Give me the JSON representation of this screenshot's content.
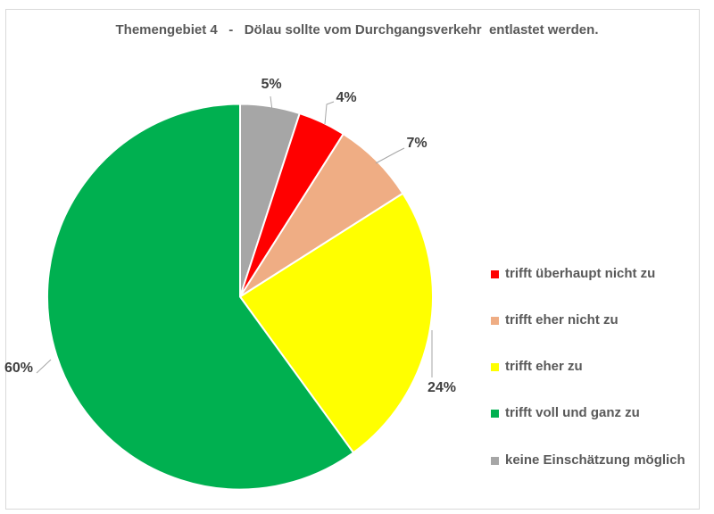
{
  "title": "Themengebiet 4   -   Dölau sollte vom Durchgangsverkehr  entlastet werden.",
  "colors": {
    "title_text": "#595959",
    "percent_label_text": "#3f3f3f",
    "legend_text": "#595959",
    "chart_border": "#d9d9d9",
    "leader_line": "#a6a6a6",
    "slice_gap_stroke": "#ffffff"
  },
  "chart_data": {
    "type": "pie",
    "title": "Themengebiet 4   -   Dölau sollte vom Durchgangsverkehr  entlastet werden.",
    "unit": "percent",
    "direction": "clockwise",
    "start_angle_deg": 0,
    "legend_position": "right",
    "slices": [
      {
        "label": "keine Einschätzung möglich",
        "value": 5,
        "percent_label": "5%",
        "color": "#a6a6a6"
      },
      {
        "label": "trifft überhaupt nicht zu",
        "value": 4,
        "percent_label": "4%",
        "color": "#ff0000"
      },
      {
        "label": "trifft eher nicht zu",
        "value": 7,
        "percent_label": "7%",
        "color": "#efad84"
      },
      {
        "label": "trifft eher zu",
        "value": 24,
        "percent_label": "24%",
        "color": "#ffff00"
      },
      {
        "label": "trifft voll und ganz zu",
        "value": 60,
        "percent_label": "60%",
        "color": "#00b050"
      }
    ],
    "legend": [
      {
        "label": "trifft überhaupt nicht zu",
        "color": "#ff0000"
      },
      {
        "label": "trifft eher nicht zu",
        "color": "#efad84"
      },
      {
        "label": "trifft eher zu",
        "color": "#ffff00"
      },
      {
        "label": "trifft voll und ganz zu",
        "color": "#00b050"
      },
      {
        "label": "keine Einschätzung möglich",
        "color": "#a6a6a6"
      }
    ]
  }
}
